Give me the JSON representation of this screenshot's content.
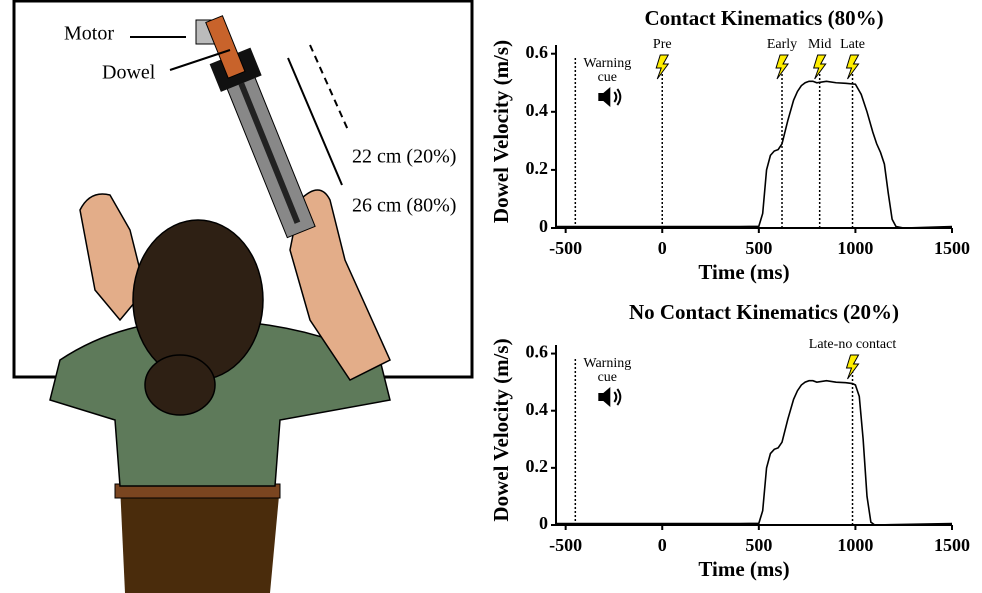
{
  "illustration": {
    "labels": [
      "Motor",
      "Dowel",
      "22 cm (20%)",
      "26 cm (80%)"
    ]
  },
  "chart_data": [
    {
      "type": "line",
      "title": "Contact Kinematics (80%)",
      "x_label": "Time (ms)",
      "y_label": "Dowel Velocity (m/s)",
      "xlim": [
        -550,
        1500
      ],
      "xticks": [
        -500,
        0,
        500,
        1000,
        1500
      ],
      "ylim": [
        0,
        0.63
      ],
      "yticks": [
        0,
        0.2,
        0.4,
        0.6
      ],
      "x": [
        -550,
        -400,
        0,
        400,
        500,
        520,
        540,
        560,
        580,
        600,
        620,
        650,
        680,
        700,
        720,
        740,
        760,
        780,
        800,
        850,
        900,
        950,
        1000,
        1030,
        1060,
        1090,
        1110,
        1130,
        1150,
        1170,
        1190,
        1210,
        1250,
        1500
      ],
      "series": [
        {
          "color": "#000000",
          "values": [
            0.005,
            0.005,
            0.005,
            0.005,
            0.006,
            0.05,
            0.2,
            0.25,
            0.265,
            0.27,
            0.29,
            0.37,
            0.44,
            0.47,
            0.49,
            0.5,
            0.505,
            0.505,
            0.5,
            0.505,
            0.5,
            0.498,
            0.495,
            0.46,
            0.4,
            0.33,
            0.29,
            0.26,
            0.22,
            0.12,
            0.03,
            0.005,
            0,
            0.005
          ]
        }
      ],
      "markers": [
        {
          "x": -450,
          "label": [
            "Warning",
            "cue"
          ]
        },
        {
          "x": 0,
          "label": [
            "Pre"
          ]
        },
        {
          "x": 620,
          "label": [
            "Early"
          ]
        },
        {
          "x": 815,
          "label": [
            "Mid"
          ]
        },
        {
          "x": 985,
          "label": [
            "Late"
          ]
        }
      ]
    },
    {
      "type": "line",
      "title": "No Contact Kinematics (20%)",
      "x_label": "Time (ms)",
      "y_label": "Dowel Velocity (m/s)",
      "xlim": [
        -550,
        1500
      ],
      "xticks": [
        -500,
        0,
        500,
        1000,
        1500
      ],
      "ylim": [
        0,
        0.63
      ],
      "yticks": [
        0,
        0.2,
        0.4,
        0.6
      ],
      "x": [
        -550,
        -400,
        0,
        400,
        500,
        520,
        540,
        560,
        580,
        600,
        620,
        650,
        680,
        700,
        720,
        740,
        760,
        780,
        800,
        850,
        900,
        950,
        985,
        1000,
        1020,
        1040,
        1060,
        1080,
        1100,
        1500
      ],
      "series": [
        {
          "color": "#000000",
          "values": [
            0.005,
            0.005,
            0.005,
            0.005,
            0.006,
            0.05,
            0.2,
            0.25,
            0.265,
            0.27,
            0.29,
            0.37,
            0.44,
            0.47,
            0.49,
            0.5,
            0.505,
            0.505,
            0.5,
            0.505,
            0.5,
            0.498,
            0.495,
            0.49,
            0.45,
            0.3,
            0.1,
            0.01,
            0,
            0.005
          ]
        }
      ],
      "markers": [
        {
          "x": -450,
          "label": [
            "Warning",
            "cue"
          ]
        },
        {
          "x": 985,
          "label": [
            "Late-no contact"
          ]
        }
      ]
    }
  ]
}
